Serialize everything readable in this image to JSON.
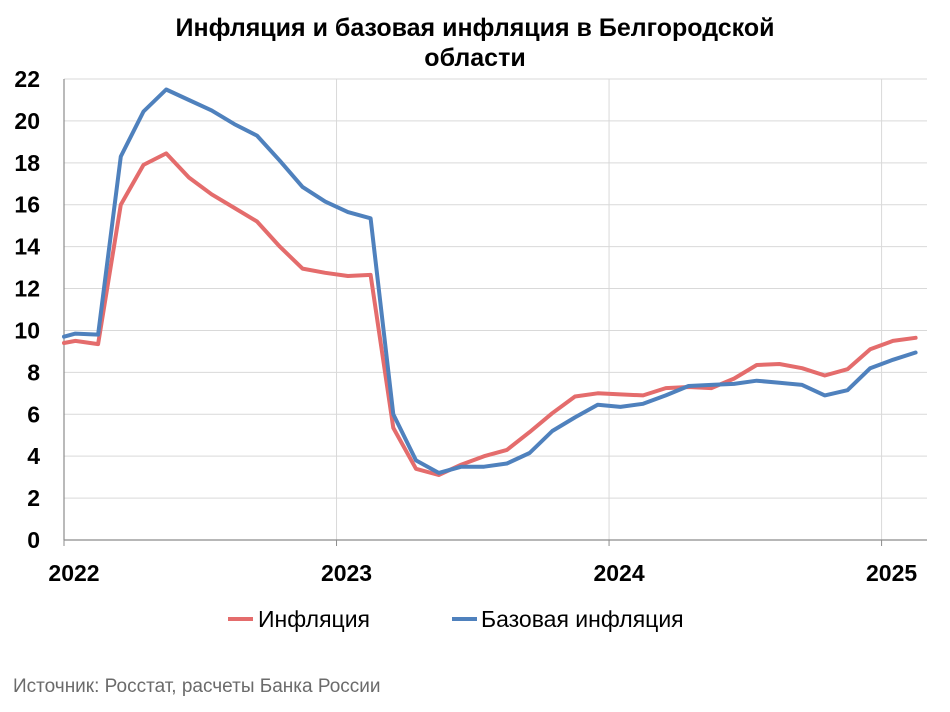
{
  "chart_data": {
    "type": "line",
    "title_lines": [
      "Инфляция и базовая инфляция в Белгородской",
      "области"
    ],
    "xlabel": "",
    "ylabel": "",
    "ylim": [
      0,
      22
    ],
    "yticks": [
      0,
      2,
      4,
      6,
      8,
      10,
      12,
      14,
      16,
      18,
      20,
      22
    ],
    "xlim": [
      "2022-01",
      "2025-03"
    ],
    "xticks": [
      {
        "label": "2022",
        "date": "2022-01"
      },
      {
        "label": "2023",
        "date": "2023-01"
      },
      {
        "label": "2024",
        "date": "2024-01"
      },
      {
        "label": "2025",
        "date": "2025-01"
      }
    ],
    "x": [
      "2022-01",
      "2022-02",
      "2022-03",
      "2022-04",
      "2022-05",
      "2022-06",
      "2022-07",
      "2022-08",
      "2022-09",
      "2022-10",
      "2022-11",
      "2022-12",
      "2023-01",
      "2023-02",
      "2023-03",
      "2023-04",
      "2023-05",
      "2023-06",
      "2023-07",
      "2023-08",
      "2023-09",
      "2023-10",
      "2023-11",
      "2023-12",
      "2024-01",
      "2024-02",
      "2024-03",
      "2024-04",
      "2024-05",
      "2024-06",
      "2024-07",
      "2024-08",
      "2024-09",
      "2024-10",
      "2024-11",
      "2024-12",
      "2025-01",
      "2025-02"
    ],
    "series": [
      {
        "name": "Инфляция",
        "color": "#e46c6c",
        "values": [
          9.5,
          9.35,
          16.0,
          17.9,
          18.45,
          17.3,
          16.5,
          15.85,
          15.2,
          14.0,
          12.95,
          12.75,
          12.6,
          12.65,
          5.35,
          3.4,
          3.1,
          3.6,
          4.0,
          4.3,
          5.15,
          6.05,
          6.85,
          7.0,
          6.95,
          6.9,
          7.25,
          7.3,
          7.25,
          7.7,
          8.35,
          8.4,
          8.2,
          7.85,
          8.15,
          9.1,
          9.5,
          9.65
        ]
      },
      {
        "name": "Базовая инфляция",
        "color": "#4f81bd",
        "values": [
          9.85,
          9.8,
          18.3,
          20.45,
          21.5,
          21.0,
          20.5,
          19.85,
          19.3,
          18.1,
          16.85,
          16.15,
          15.65,
          15.35,
          6.0,
          3.8,
          3.2,
          3.5,
          3.5,
          3.65,
          4.15,
          5.2,
          5.85,
          6.45,
          6.35,
          6.5,
          6.9,
          7.35,
          7.4,
          7.45,
          7.6,
          7.5,
          7.4,
          6.9,
          7.15,
          8.2,
          8.6,
          8.95
        ]
      }
    ],
    "start_values": [
      9.4,
      9.7
    ],
    "legend_position": "bottom-center",
    "grid": true
  },
  "source": "Источник: Росстат, расчеты Банка России"
}
